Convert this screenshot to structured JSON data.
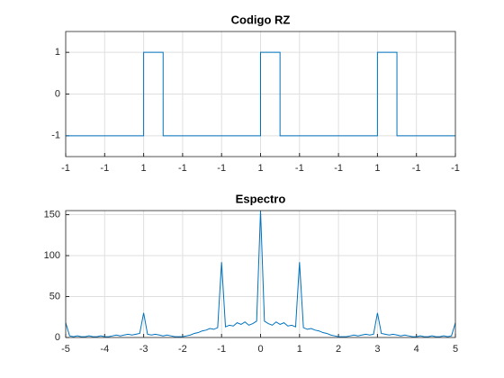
{
  "chart_data": [
    {
      "type": "line",
      "title": "Codigo RZ",
      "x": [
        0,
        2,
        2,
        2.5,
        2.5,
        5,
        5,
        5.5,
        5.5,
        8,
        8,
        8.5,
        8.5,
        10
      ],
      "series": [
        {
          "color": "#0072bd",
          "values": [
            -1,
            -1,
            1,
            1,
            -1,
            -1,
            1,
            1,
            -1,
            -1,
            1,
            1,
            -1,
            -1
          ]
        }
      ],
      "xlim": [
        0,
        10
      ],
      "xticks": [
        {
          "value": 0,
          "label": "-1"
        },
        {
          "value": 1,
          "label": "-1"
        },
        {
          "value": 2,
          "label": "1"
        },
        {
          "value": 3,
          "label": "-1"
        },
        {
          "value": 4,
          "label": "-1"
        },
        {
          "value": 5,
          "label": "1"
        },
        {
          "value": 6,
          "label": "-1"
        },
        {
          "value": 7,
          "label": "-1"
        },
        {
          "value": 8,
          "label": "1"
        },
        {
          "value": 9,
          "label": "-1"
        },
        {
          "value": 10,
          "label": "-1"
        }
      ],
      "ylim": [
        -1.5,
        1.5
      ],
      "yticks": [
        -1,
        0,
        1
      ],
      "grid": true
    },
    {
      "type": "line",
      "title": "Espectro",
      "x": [
        -5,
        -4.9,
        -4.8,
        -4.7,
        -4.6,
        -4.5,
        -4.4,
        -4.3,
        -4.2,
        -4.1,
        -4,
        -3.9,
        -3.8,
        -3.7,
        -3.6,
        -3.5,
        -3.4,
        -3.3,
        -3.2,
        -3.1,
        -3,
        -2.9,
        -2.8,
        -2.7,
        -2.6,
        -2.5,
        -2.4,
        -2.3,
        -2.2,
        -2.1,
        -2,
        -1.9,
        -1.8,
        -1.7,
        -1.6,
        -1.5,
        -1.4,
        -1.3,
        -1.2,
        -1.1,
        -1,
        -0.9,
        -0.8,
        -0.7,
        -0.6,
        -0.5,
        -0.4,
        -0.3,
        -0.2,
        -0.1,
        0,
        0.1,
        0.2,
        0.3,
        0.4,
        0.5,
        0.6,
        0.7,
        0.8,
        0.9,
        1,
        1.1,
        1.2,
        1.3,
        1.4,
        1.5,
        1.6,
        1.7,
        1.8,
        1.9,
        2,
        2.1,
        2.2,
        2.3,
        2.4,
        2.5,
        2.6,
        2.7,
        2.8,
        2.9,
        3,
        3.1,
        3.2,
        3.3,
        3.4,
        3.5,
        3.6,
        3.7,
        3.8,
        3.9,
        4,
        4.1,
        4.2,
        4.3,
        4.4,
        4.5,
        4.6,
        4.7,
        4.8,
        4.9,
        5
      ],
      "series": [
        {
          "color": "#0072bd",
          "values": [
            18,
            2,
            1,
            2,
            1,
            1,
            2,
            1,
            1,
            2,
            1,
            1,
            2,
            3,
            2,
            3,
            4,
            3,
            4,
            5,
            30,
            4,
            3,
            4,
            3,
            2,
            3,
            2,
            1,
            1,
            1,
            2,
            3,
            5,
            6,
            8,
            9,
            11,
            10,
            12,
            92,
            13,
            15,
            14,
            18,
            16,
            19,
            15,
            17,
            20,
            155,
            20,
            17,
            15,
            19,
            16,
            18,
            14,
            15,
            13,
            92,
            12,
            10,
            11,
            9,
            8,
            6,
            5,
            3,
            2,
            1,
            1,
            1,
            2,
            3,
            2,
            3,
            4,
            3,
            4,
            30,
            5,
            4,
            3,
            4,
            3,
            2,
            3,
            2,
            1,
            1,
            2,
            1,
            1,
            2,
            1,
            1,
            2,
            1,
            2,
            18
          ]
        }
      ],
      "xlim": [
        -5,
        5
      ],
      "xticks": [
        -5,
        -4,
        -3,
        -2,
        -1,
        0,
        1,
        2,
        3,
        4,
        5
      ],
      "ylim": [
        0,
        155
      ],
      "yticks": [
        0,
        50,
        100,
        150
      ],
      "grid": true
    }
  ]
}
